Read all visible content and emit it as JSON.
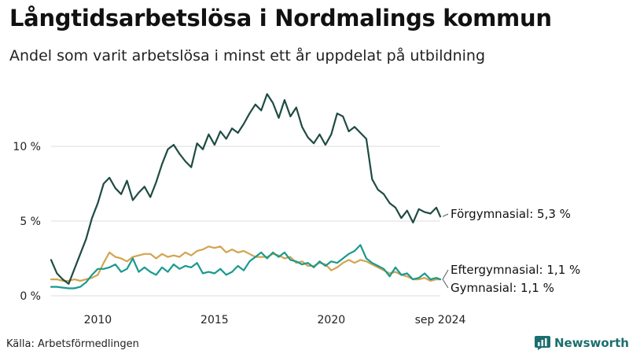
{
  "title": "Långtidsarbetslösa i Nordmalings kommun",
  "subtitle": "Andel som varit arbetslösa i minst ett år uppdelat på utbildning",
  "source": "Källa: Arbetsförmedlingen",
  "brand": "Newsworthy",
  "colors": {
    "forgymnasial": "#1f4b43",
    "eftergymnasial": "#1a9a8e",
    "gymnasial": "#d2a451",
    "grid": "#dddddd",
    "brand": "#1b6e6e"
  },
  "chart_data": {
    "type": "line",
    "title": "Långtidsarbetslösa i Nordmalings kommun",
    "xlabel": "",
    "ylabel": "",
    "xlim": [
      2008.0,
      2024.67
    ],
    "ylim": [
      0,
      13.5
    ],
    "yticks": [
      0,
      5,
      10
    ],
    "ytick_labels": [
      "0 %",
      "5 %",
      "10 %"
    ],
    "xticks": [
      2010,
      2015,
      2020,
      2024.67
    ],
    "xtick_labels": [
      "2010",
      "2015",
      "2020",
      "sep 2024"
    ],
    "grid": true,
    "series": [
      {
        "name": "Förgymnasial",
        "label": "Förgymnasial: 5,3 %",
        "color": "#1f4b43",
        "x": [
          2008.0,
          2008.25,
          2008.5,
          2008.75,
          2009.0,
          2009.25,
          2009.5,
          2009.75,
          2010.0,
          2010.25,
          2010.5,
          2010.75,
          2011.0,
          2011.25,
          2011.5,
          2011.75,
          2012.0,
          2012.25,
          2012.5,
          2012.75,
          2013.0,
          2013.25,
          2013.5,
          2013.75,
          2014.0,
          2014.25,
          2014.5,
          2014.75,
          2015.0,
          2015.25,
          2015.5,
          2015.75,
          2016.0,
          2016.25,
          2016.5,
          2016.75,
          2017.0,
          2017.25,
          2017.5,
          2017.75,
          2018.0,
          2018.25,
          2018.5,
          2018.75,
          2019.0,
          2019.25,
          2019.5,
          2019.75,
          2020.0,
          2020.25,
          2020.5,
          2020.75,
          2021.0,
          2021.25,
          2021.5,
          2021.75,
          2022.0,
          2022.25,
          2022.5,
          2022.75,
          2023.0,
          2023.25,
          2023.5,
          2023.75,
          2024.0,
          2024.25,
          2024.5,
          2024.67
        ],
        "values": [
          2.4,
          1.5,
          1.1,
          0.8,
          1.8,
          2.8,
          3.8,
          5.2,
          6.2,
          7.5,
          7.9,
          7.2,
          6.8,
          7.7,
          6.4,
          6.9,
          7.3,
          6.6,
          7.6,
          8.8,
          9.8,
          10.1,
          9.5,
          9.0,
          8.6,
          10.2,
          9.8,
          10.8,
          10.1,
          11.0,
          10.5,
          11.2,
          10.9,
          11.5,
          12.2,
          12.8,
          12.4,
          13.5,
          12.9,
          11.9,
          13.1,
          12.0,
          12.6,
          11.3,
          10.6,
          10.2,
          10.8,
          10.1,
          10.8,
          12.2,
          12.0,
          11.0,
          11.3,
          10.9,
          10.5,
          7.8,
          7.1,
          6.8,
          6.2,
          5.9,
          5.2,
          5.7,
          4.9,
          5.8,
          5.6,
          5.5,
          5.9,
          5.3
        ]
      },
      {
        "name": "Eftergymnasial",
        "label": "Eftergymnasial: 1,1 %",
        "color": "#1a9a8e",
        "x": [
          2008.0,
          2008.25,
          2008.5,
          2008.75,
          2009.0,
          2009.25,
          2009.5,
          2009.75,
          2010.0,
          2010.25,
          2010.5,
          2010.75,
          2011.0,
          2011.25,
          2011.5,
          2011.75,
          2012.0,
          2012.25,
          2012.5,
          2012.75,
          2013.0,
          2013.25,
          2013.5,
          2013.75,
          2014.0,
          2014.25,
          2014.5,
          2014.75,
          2015.0,
          2015.25,
          2015.5,
          2015.75,
          2016.0,
          2016.25,
          2016.5,
          2016.75,
          2017.0,
          2017.25,
          2017.5,
          2017.75,
          2018.0,
          2018.25,
          2018.5,
          2018.75,
          2019.0,
          2019.25,
          2019.5,
          2019.75,
          2020.0,
          2020.25,
          2020.5,
          2020.75,
          2021.0,
          2021.25,
          2021.5,
          2021.75,
          2022.0,
          2022.25,
          2022.5,
          2022.75,
          2023.0,
          2023.25,
          2023.5,
          2023.75,
          2024.0,
          2024.25,
          2024.5,
          2024.67
        ],
        "values": [
          0.6,
          0.6,
          0.55,
          0.5,
          0.5,
          0.6,
          0.9,
          1.4,
          1.8,
          1.8,
          1.9,
          2.1,
          1.6,
          1.8,
          2.5,
          1.6,
          1.9,
          1.6,
          1.4,
          1.9,
          1.6,
          2.1,
          1.8,
          2.0,
          1.9,
          2.2,
          1.5,
          1.6,
          1.5,
          1.8,
          1.4,
          1.6,
          2.0,
          1.7,
          2.3,
          2.6,
          2.9,
          2.5,
          2.9,
          2.6,
          2.9,
          2.4,
          2.3,
          2.1,
          2.2,
          1.9,
          2.3,
          2.0,
          2.3,
          2.2,
          2.5,
          2.8,
          3.0,
          3.4,
          2.5,
          2.2,
          2.0,
          1.8,
          1.3,
          1.9,
          1.4,
          1.5,
          1.1,
          1.2,
          1.5,
          1.1,
          1.2,
          1.1
        ]
      },
      {
        "name": "Gymnasial",
        "label": "Gymnasial: 1,1 %",
        "color": "#d2a451",
        "x": [
          2008.0,
          2008.25,
          2008.5,
          2008.75,
          2009.0,
          2009.25,
          2009.5,
          2009.75,
          2010.0,
          2010.25,
          2010.5,
          2010.75,
          2011.0,
          2011.25,
          2011.5,
          2011.75,
          2012.0,
          2012.25,
          2012.5,
          2012.75,
          2013.0,
          2013.25,
          2013.5,
          2013.75,
          2014.0,
          2014.25,
          2014.5,
          2014.75,
          2015.0,
          2015.25,
          2015.5,
          2015.75,
          2016.0,
          2016.25,
          2016.5,
          2016.75,
          2017.0,
          2017.25,
          2017.5,
          2017.75,
          2018.0,
          2018.25,
          2018.5,
          2018.75,
          2019.0,
          2019.25,
          2019.5,
          2019.75,
          2020.0,
          2020.25,
          2020.5,
          2020.75,
          2021.0,
          2021.25,
          2021.5,
          2021.75,
          2022.0,
          2022.25,
          2022.5,
          2022.75,
          2023.0,
          2023.25,
          2023.5,
          2023.75,
          2024.0,
          2024.25,
          2024.5,
          2024.67
        ],
        "values": [
          1.1,
          1.1,
          1.0,
          1.0,
          1.1,
          1.0,
          1.1,
          1.2,
          1.4,
          2.2,
          2.9,
          2.6,
          2.5,
          2.3,
          2.6,
          2.7,
          2.8,
          2.8,
          2.5,
          2.8,
          2.6,
          2.7,
          2.6,
          2.9,
          2.7,
          3.0,
          3.1,
          3.3,
          3.2,
          3.3,
          2.9,
          3.1,
          2.9,
          3.0,
          2.8,
          2.6,
          2.6,
          2.6,
          2.8,
          2.7,
          2.5,
          2.6,
          2.2,
          2.3,
          2.0,
          2.0,
          2.2,
          2.1,
          1.7,
          1.9,
          2.2,
          2.4,
          2.2,
          2.4,
          2.3,
          2.1,
          1.9,
          1.7,
          1.5,
          1.6,
          1.4,
          1.3,
          1.1,
          1.1,
          1.2,
          1.0,
          1.1,
          1.1
        ]
      }
    ]
  }
}
